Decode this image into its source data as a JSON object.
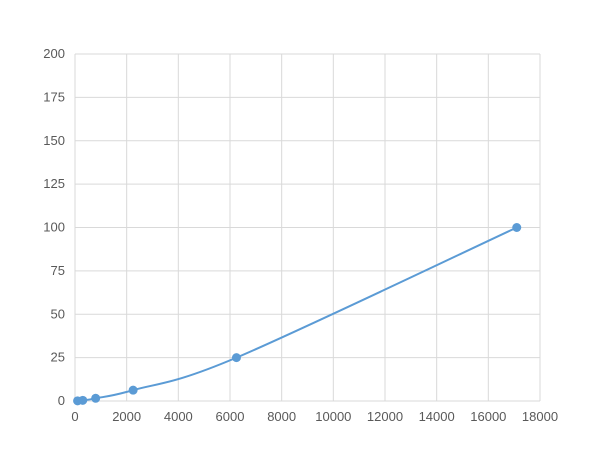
{
  "chart_data": {
    "type": "scatter",
    "title": "",
    "xlabel": "",
    "ylabel": "",
    "xlim": [
      0,
      18000
    ],
    "ylim": [
      0,
      200
    ],
    "xticks": [
      0,
      2000,
      4000,
      6000,
      8000,
      10000,
      12000,
      14000,
      16000,
      18000
    ],
    "yticks": [
      0,
      25,
      50,
      75,
      100,
      125,
      150,
      175,
      200
    ],
    "grid": true,
    "color": "#5b9bd5",
    "smooth_line": true,
    "series": [
      {
        "x": [
          100,
          300,
          800,
          2250,
          6250,
          17100
        ],
        "y": [
          0.1,
          0.39,
          1.56,
          6.25,
          25,
          100
        ]
      }
    ]
  }
}
